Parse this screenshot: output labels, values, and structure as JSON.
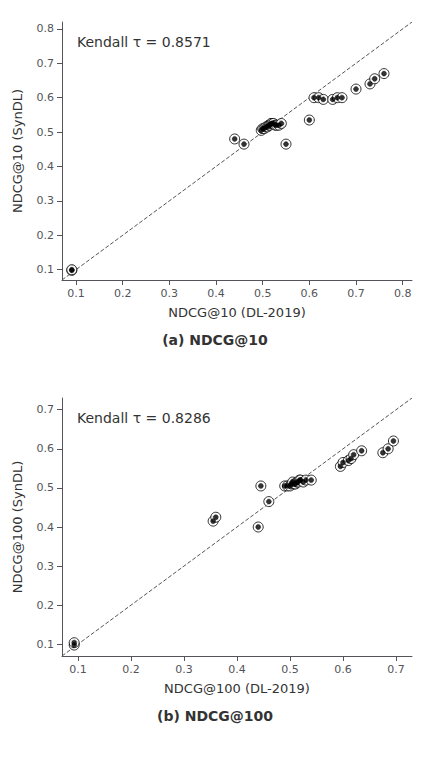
{
  "chart_data": [
    {
      "type": "scatter",
      "title": "(a) NDCG@10",
      "xlabel": "NDCG@10 (DL-2019)",
      "ylabel": "NDCG@10 (SynDL)",
      "annotation": "Kendall τ = 0.8571",
      "xlim": [
        0.07,
        0.82
      ],
      "ylim": [
        0.07,
        0.82
      ],
      "xticks": [
        0.1,
        0.2,
        0.3,
        0.4,
        0.5,
        0.6,
        0.7,
        0.8
      ],
      "yticks": [
        0.1,
        0.2,
        0.3,
        0.4,
        0.5,
        0.6,
        0.7,
        0.8
      ],
      "grid": false,
      "series": [
        {
          "type": "scatter",
          "color": "black",
          "marker": "circle",
          "x": [
            0.091,
            0.091,
            0.44,
            0.46,
            0.497,
            0.5,
            0.503,
            0.507,
            0.51,
            0.513,
            0.515,
            0.518,
            0.52,
            0.523,
            0.527,
            0.53,
            0.535,
            0.54,
            0.55,
            0.6,
            0.61,
            0.62,
            0.63,
            0.65,
            0.66,
            0.67,
            0.7,
            0.73,
            0.74,
            0.76
          ],
          "values": [
            0.098,
            0.1,
            0.48,
            0.465,
            0.505,
            0.51,
            0.51,
            0.515,
            0.515,
            0.52,
            0.52,
            0.525,
            0.525,
            0.525,
            0.52,
            0.52,
            0.52,
            0.525,
            0.465,
            0.535,
            0.6,
            0.6,
            0.595,
            0.595,
            0.6,
            0.6,
            0.625,
            0.64,
            0.655,
            0.67
          ]
        },
        {
          "type": "line",
          "color": "#555555",
          "line_style": "dashed",
          "x": [
            0.07,
            0.82
          ],
          "values": [
            0.07,
            0.82
          ]
        }
      ]
    },
    {
      "type": "scatter",
      "title": "(b) NDCG@100",
      "xlabel": "NDCG@100 (DL-2019)",
      "ylabel": "NDCG@100 (SynDL)",
      "annotation": "Kendall τ = 0.8286",
      "xlim": [
        0.07,
        0.73
      ],
      "ylim": [
        0.07,
        0.73
      ],
      "xticks": [
        0.1,
        0.2,
        0.3,
        0.4,
        0.5,
        0.6,
        0.7
      ],
      "yticks": [
        0.1,
        0.2,
        0.3,
        0.4,
        0.5,
        0.6,
        0.7
      ],
      "grid": false,
      "series": [
        {
          "type": "scatter",
          "color": "black",
          "marker": "circle",
          "x": [
            0.093,
            0.093,
            0.355,
            0.36,
            0.44,
            0.445,
            0.46,
            0.49,
            0.495,
            0.5,
            0.503,
            0.505,
            0.508,
            0.51,
            0.513,
            0.515,
            0.518,
            0.52,
            0.525,
            0.53,
            0.54,
            0.595,
            0.6,
            0.61,
            0.615,
            0.62,
            0.635,
            0.675,
            0.685,
            0.695
          ],
          "values": [
            0.098,
            0.104,
            0.415,
            0.425,
            0.4,
            0.505,
            0.465,
            0.505,
            0.505,
            0.505,
            0.51,
            0.515,
            0.51,
            0.51,
            0.515,
            0.515,
            0.52,
            0.52,
            0.515,
            0.52,
            0.52,
            0.555,
            0.565,
            0.57,
            0.575,
            0.585,
            0.595,
            0.59,
            0.6,
            0.62
          ]
        },
        {
          "type": "line",
          "color": "#555555",
          "line_style": "dashed",
          "x": [
            0.07,
            0.73
          ],
          "values": [
            0.07,
            0.73
          ]
        }
      ]
    }
  ]
}
